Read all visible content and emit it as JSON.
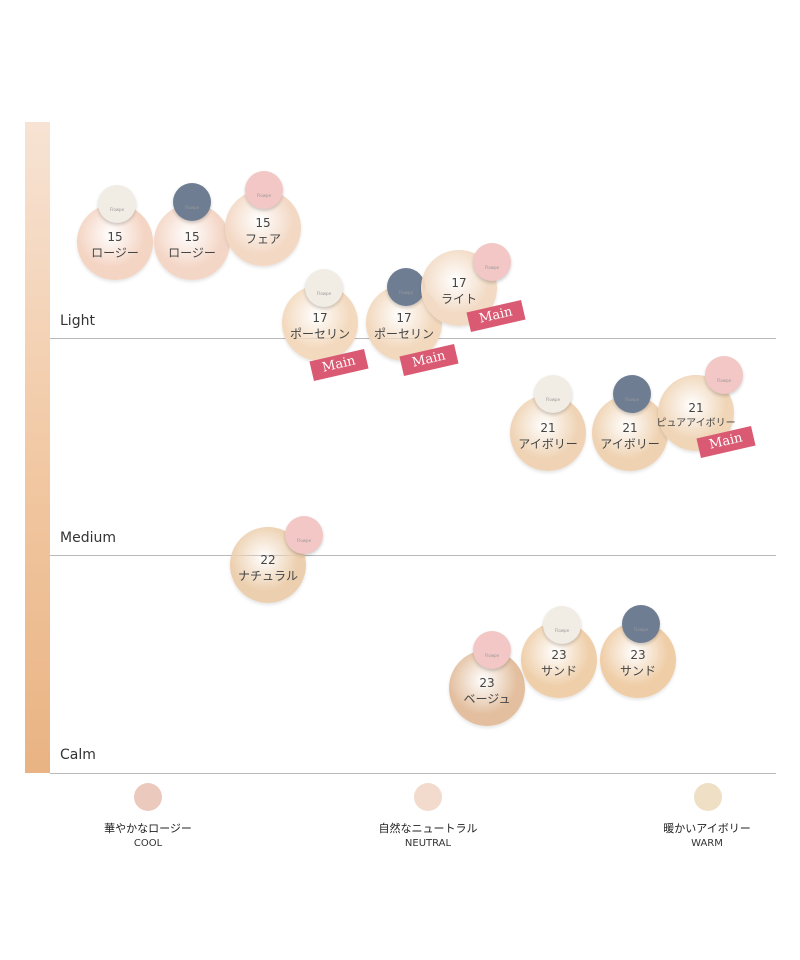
{
  "chart_data": {
    "type": "scatter",
    "title": "",
    "y_axis_levels": [
      "Light",
      "Medium",
      "Calm"
    ],
    "x_axis_categories": [
      {
        "name": "華やかなロージー",
        "sub": "COOL",
        "color": "#ecc9bd"
      },
      {
        "name": "自然なニュートラル",
        "sub": "NEUTRAL",
        "color": "#f2dbcd"
      },
      {
        "name": "暖かいアイボリー",
        "sub": "WARM",
        "color": "#efdfc5"
      }
    ],
    "cap_colors": {
      "white": "#f1ece4",
      "navy": "#6f7d93",
      "pink": "#f2c7c5"
    },
    "cap_text": "Flowpe",
    "badge_text": "Main",
    "products": [
      {
        "shade": "15",
        "name": "ロージー",
        "color": "#f4d4c3",
        "cap": "white",
        "main": false
      },
      {
        "shade": "15",
        "name": "ロージー",
        "color": "#f4d6c6",
        "cap": "navy",
        "main": false
      },
      {
        "shade": "15",
        "name": "フェア",
        "color": "#f3d8c4",
        "cap": "pink",
        "main": false
      },
      {
        "shade": "17",
        "name": "ポーセリン",
        "color": "#f3d9bd",
        "cap": "white",
        "main": true
      },
      {
        "shade": "17",
        "name": "ポーセリン",
        "color": "#f2d8bd",
        "cap": "navy",
        "main": true
      },
      {
        "shade": "17",
        "name": "ライト",
        "color": "#f2dac4",
        "cap": "pink",
        "main": true
      },
      {
        "shade": "21",
        "name": "アイボリー",
        "color": "#efd3b4",
        "cap": "white",
        "main": false
      },
      {
        "shade": "21",
        "name": "アイボリー",
        "color": "#efd2b1",
        "cap": "navy",
        "main": false
      },
      {
        "shade": "21",
        "name": "ピュアアイボリー",
        "color": "#f0d5b7",
        "cap": "pink",
        "main": true
      },
      {
        "shade": "22",
        "name": "ナチュラル",
        "color": "#eccfae",
        "cap": "pink",
        "main": false
      },
      {
        "shade": "23",
        "name": "ベージュ",
        "color": "#e3bf9f",
        "cap": "pink",
        "main": false
      },
      {
        "shade": "23",
        "name": "サンド",
        "color": "#efcfaa",
        "cap": "white",
        "main": false
      },
      {
        "shade": "23",
        "name": "サンド",
        "color": "#efcda6",
        "cap": "navy",
        "main": false
      }
    ]
  }
}
